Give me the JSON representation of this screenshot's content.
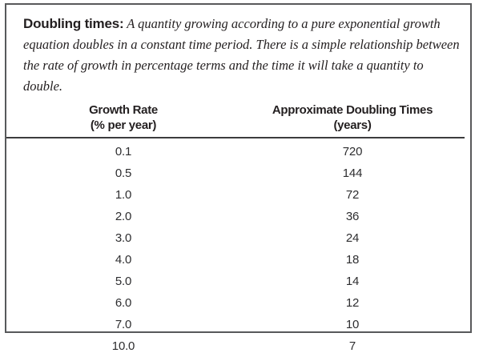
{
  "intro": {
    "title": "Doubling times:",
    "body": "A quantity growing according to a pure exponential growth equation doubles in a constant time period. There is a simple relationship between the rate of growth in percentage terms and the time it will take a quantity to double."
  },
  "table": {
    "columns": [
      {
        "line1": "Growth Rate",
        "line2": "(% per year)"
      },
      {
        "line1": "Approximate Doubling Times",
        "line2": "(years)"
      }
    ],
    "rows": [
      {
        "rate": "0.1",
        "years": "720"
      },
      {
        "rate": "0.5",
        "years": "144"
      },
      {
        "rate": "1.0",
        "years": "72"
      },
      {
        "rate": "2.0",
        "years": "36"
      },
      {
        "rate": "3.0",
        "years": "24"
      },
      {
        "rate": "4.0",
        "years": "18"
      },
      {
        "rate": "5.0",
        "years": "14"
      },
      {
        "rate": "6.0",
        "years": "12"
      },
      {
        "rate": "7.0",
        "years": "10"
      },
      {
        "rate": "10.0",
        "years": "7"
      }
    ]
  },
  "colors": {
    "frame_border": "#58595b",
    "header_rule": "#3c3c3e",
    "text": "#231f20"
  },
  "chart_data": {
    "type": "table",
    "title": "Doubling times",
    "columns": [
      "Growth Rate (% per year)",
      "Approximate Doubling Times (years)"
    ],
    "rows": [
      [
        0.1,
        720
      ],
      [
        0.5,
        144
      ],
      [
        1.0,
        72
      ],
      [
        2.0,
        36
      ],
      [
        3.0,
        24
      ],
      [
        4.0,
        18
      ],
      [
        5.0,
        14
      ],
      [
        6.0,
        12
      ],
      [
        7.0,
        10
      ],
      [
        10.0,
        7
      ]
    ]
  }
}
